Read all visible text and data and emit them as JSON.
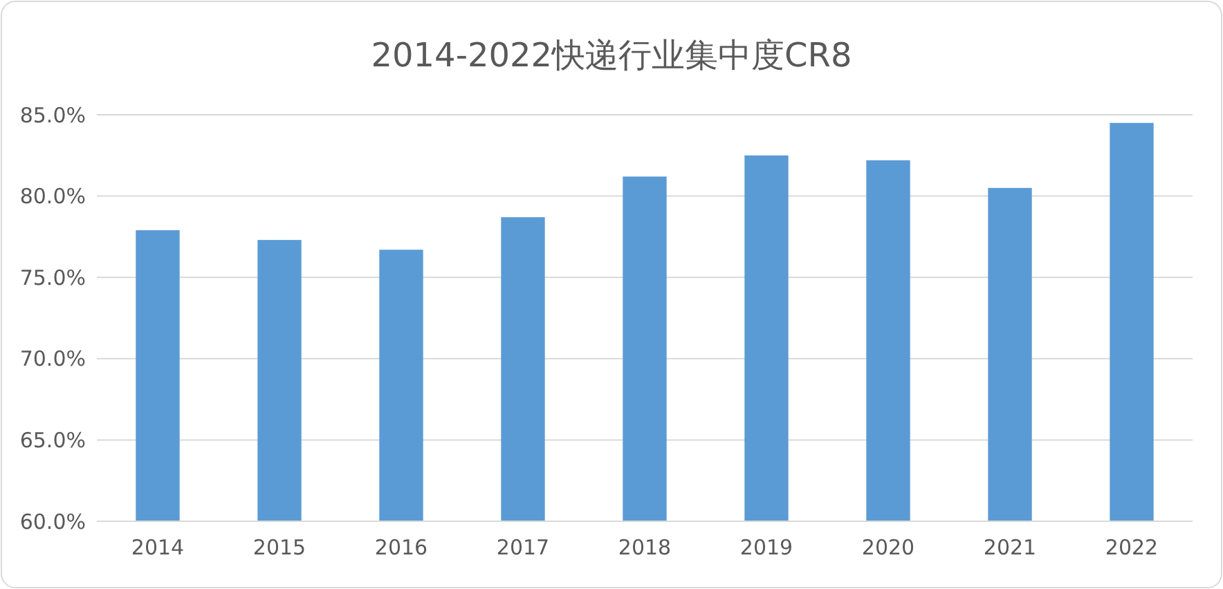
{
  "chart_data": {
    "type": "bar",
    "title": "2014-2022快递行业集中度CR8",
    "categories": [
      "2014",
      "2015",
      "2016",
      "2017",
      "2018",
      "2019",
      "2020",
      "2021",
      "2022"
    ],
    "values": [
      77.9,
      77.3,
      76.7,
      78.7,
      81.2,
      82.5,
      82.2,
      80.5,
      84.5
    ],
    "color": "#5b9bd5",
    "ylim": [
      60,
      85
    ],
    "yticks": [
      {
        "value": 60,
        "label": "60.0%"
      },
      {
        "value": 65,
        "label": "65.0%"
      },
      {
        "value": 70,
        "label": "70.0%"
      },
      {
        "value": 75,
        "label": "75.0%"
      },
      {
        "value": 80,
        "label": "80.0%"
      },
      {
        "value": 85,
        "label": "85.0%"
      }
    ],
    "grid": "y"
  }
}
